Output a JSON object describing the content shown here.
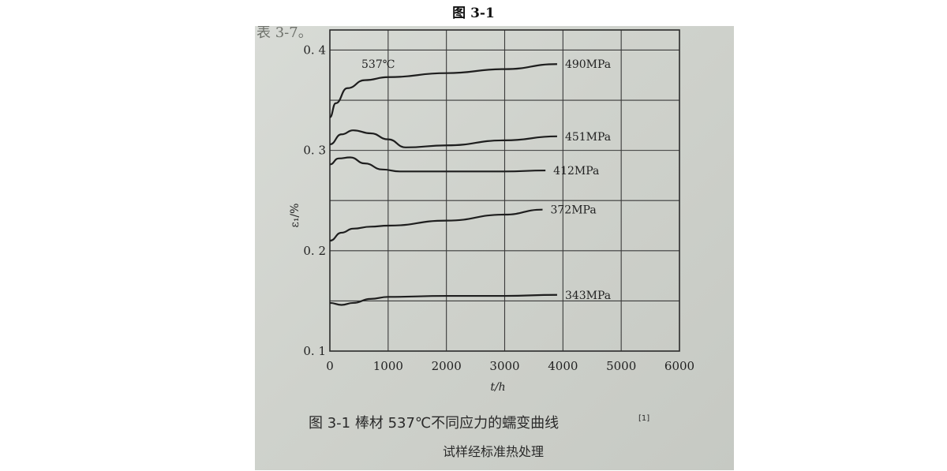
{
  "page_title": "图 3-1",
  "photo_top_fragment": "表 3-7。",
  "chart_data": {
    "type": "line",
    "annotation": "537℃",
    "xlabel": "t/h",
    "ylabel": "ε₁/%",
    "xlim": [
      0,
      6000
    ],
    "ylim": [
      0.1,
      0.42
    ],
    "xticks": [
      "0",
      "1000",
      "2000",
      "3000",
      "4000",
      "5000",
      "6000"
    ],
    "yticks": [
      "0.1",
      "0.2",
      "0.3",
      "0.4"
    ],
    "grid": true,
    "series": [
      {
        "name": "490MPa",
        "x": [
          0,
          100,
          300,
          600,
          1000,
          2000,
          3000,
          3900
        ],
        "y": [
          0.333,
          0.347,
          0.362,
          0.37,
          0.373,
          0.377,
          0.381,
          0.386
        ]
      },
      {
        "name": "451MPa",
        "x": [
          0,
          200,
          400,
          700,
          1000,
          1300,
          2000,
          3000,
          3900
        ],
        "y": [
          0.306,
          0.316,
          0.32,
          0.317,
          0.311,
          0.303,
          0.305,
          0.31,
          0.314
        ]
      },
      {
        "name": "412MPa",
        "x": [
          0,
          150,
          350,
          600,
          900,
          1200,
          2000,
          3000,
          3700
        ],
        "y": [
          0.286,
          0.292,
          0.293,
          0.287,
          0.281,
          0.279,
          0.279,
          0.279,
          0.28
        ]
      },
      {
        "name": "372MPa",
        "x": [
          0,
          200,
          400,
          700,
          1000,
          2000,
          3000,
          3650
        ],
        "y": [
          0.21,
          0.218,
          0.222,
          0.224,
          0.225,
          0.23,
          0.236,
          0.241
        ]
      },
      {
        "name": "343MPa",
        "x": [
          0,
          200,
          400,
          700,
          1000,
          2000,
          3000,
          3900
        ],
        "y": [
          0.148,
          0.146,
          0.148,
          0.152,
          0.154,
          0.155,
          0.155,
          0.156
        ]
      }
    ]
  },
  "caption": {
    "line1": "图 3-1   棒材 537℃不同应力的蠕变曲线",
    "ref": "[1]",
    "line2": "试样经标准热处理"
  }
}
